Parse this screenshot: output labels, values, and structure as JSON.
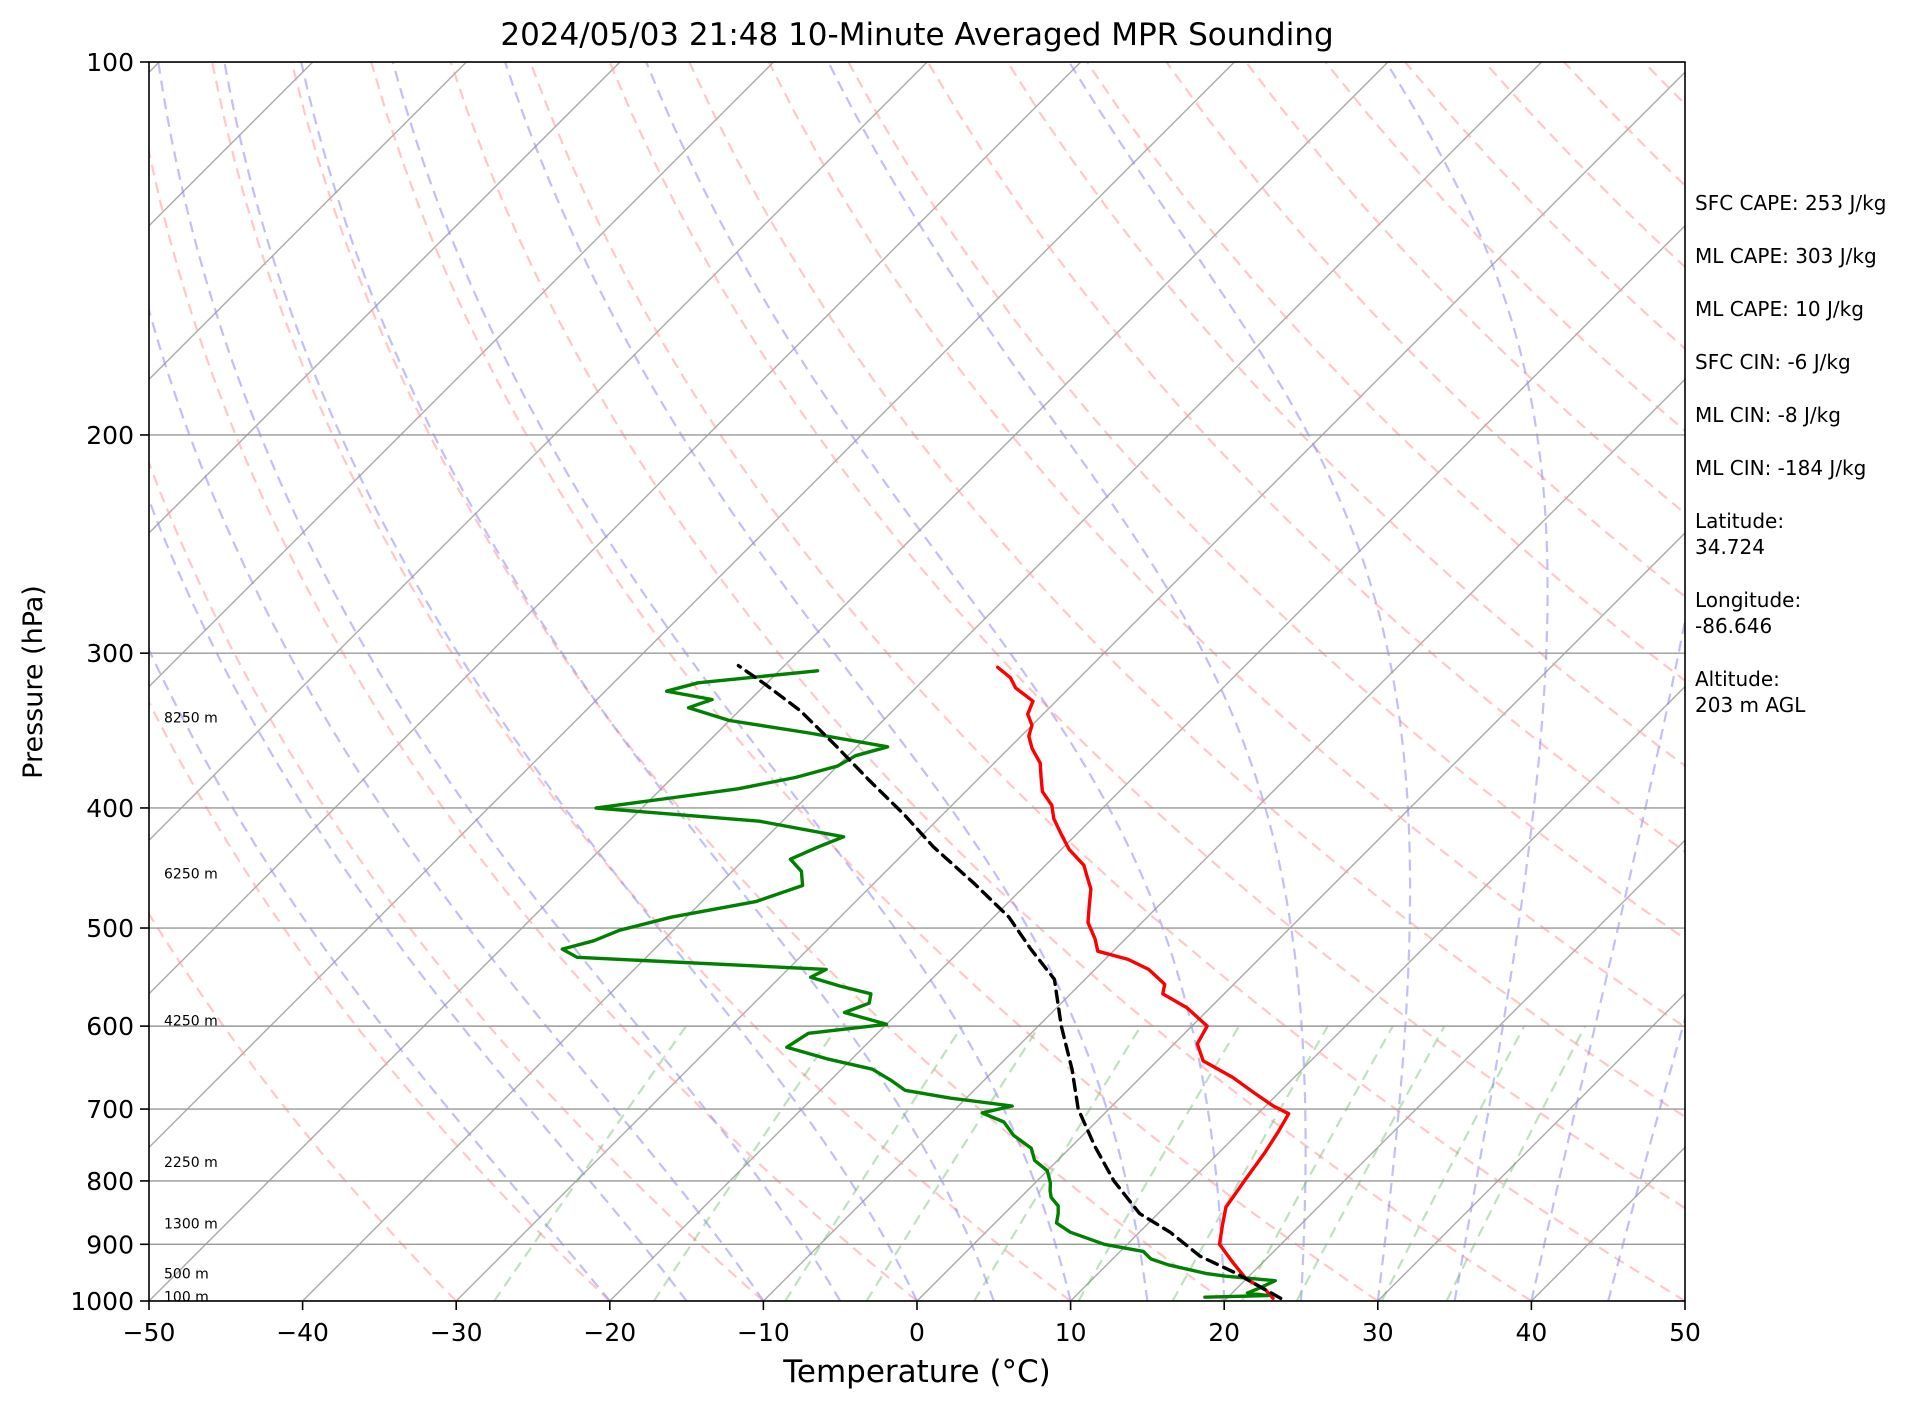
{
  "chart_data": {
    "type": "line",
    "chart_kind": "skew-T log-p",
    "title": "2024/05/03 21:48 10-Minute Averaged MPR Sounding",
    "xlabel": "Temperature (°C)",
    "ylabel": "Pressure (hPa)",
    "xlim": [
      -50,
      50
    ],
    "ylim": [
      1000,
      100
    ],
    "y_scale": "log",
    "x_ticks": [
      -50,
      -40,
      -30,
      -20,
      -10,
      0,
      10,
      20,
      30,
      40,
      50
    ],
    "x_tick_labels": [
      "−50",
      "−40",
      "−30",
      "−20",
      "−10",
      "0",
      "10",
      "20",
      "30",
      "40",
      "50"
    ],
    "y_ticks": [
      1000,
      900,
      800,
      700,
      600,
      500,
      400,
      300,
      200,
      100
    ],
    "y_tick_labels": [
      "1000",
      "900",
      "800",
      "700",
      "600",
      "500",
      "400",
      "300",
      "200",
      "100"
    ],
    "grid": true,
    "height_labels": [
      {
        "p": 992,
        "text": "100 m"
      },
      {
        "p": 950,
        "text": "500 m"
      },
      {
        "p": 866,
        "text": "1300 m"
      },
      {
        "p": 772,
        "text": "2250 m"
      },
      {
        "p": 594,
        "text": "4250 m"
      },
      {
        "p": 452,
        "text": "6250 m"
      },
      {
        "p": 338,
        "text": "8250 m"
      }
    ],
    "series": [
      {
        "color": "#ff0000",
        "points": [
          [
            23.0,
            995
          ],
          [
            22.0,
            980
          ],
          [
            20.0,
            960
          ],
          [
            18.0,
            930
          ],
          [
            16.0,
            900
          ],
          [
            15.0,
            870
          ],
          [
            14.0,
            840
          ],
          [
            13.5,
            800
          ],
          [
            13.0,
            760
          ],
          [
            12.5,
            730
          ],
          [
            12.0,
            706
          ],
          [
            10.5,
            696
          ],
          [
            8.5,
            680
          ],
          [
            6.0,
            660
          ],
          [
            3.0,
            640
          ],
          [
            1.5,
            620
          ],
          [
            1.0,
            600
          ],
          [
            -1.5,
            580
          ],
          [
            -4.0,
            565
          ],
          [
            -4.5,
            555
          ],
          [
            -6.5,
            540
          ],
          [
            -8.5,
            530
          ],
          [
            -11.0,
            522
          ],
          [
            -12.0,
            510
          ],
          [
            -13.5,
            495
          ],
          [
            -14.5,
            480
          ],
          [
            -15.5,
            465
          ],
          [
            -16.5,
            455
          ],
          [
            -17.5,
            445
          ],
          [
            -19.5,
            432
          ],
          [
            -21.0,
            420
          ],
          [
            -22.5,
            408
          ],
          [
            -23.5,
            398
          ],
          [
            -25.0,
            388
          ],
          [
            -26.0,
            378
          ],
          [
            -27.0,
            368
          ],
          [
            -28.5,
            358
          ],
          [
            -29.5,
            350
          ],
          [
            -30.0,
            343
          ],
          [
            -31.0,
            336
          ],
          [
            -31.5,
            328
          ],
          [
            -33.5,
            320
          ],
          [
            -34.5,
            314
          ],
          [
            -36.0,
            308
          ]
        ]
      },
      {
        "color": "#008000",
        "points": [
          [
            18.5,
            993
          ],
          [
            22.5,
            990
          ],
          [
            21.0,
            985
          ],
          [
            21.5,
            975
          ],
          [
            22.0,
            963
          ],
          [
            18.5,
            955
          ],
          [
            17.0,
            950
          ],
          [
            14.0,
            935
          ],
          [
            12.5,
            925
          ],
          [
            11.5,
            912
          ],
          [
            8.5,
            900
          ],
          [
            5.5,
            880
          ],
          [
            4.0,
            865
          ],
          [
            3.5,
            850
          ],
          [
            3.0,
            838
          ],
          [
            2.0,
            825
          ],
          [
            1.5,
            815
          ],
          [
            1.0,
            803
          ],
          [
            0.0,
            785
          ],
          [
            -1.5,
            770
          ],
          [
            -2.5,
            753
          ],
          [
            -4.5,
            735
          ],
          [
            -6.0,
            717
          ],
          [
            -8.0,
            705
          ],
          [
            -6.5,
            696
          ],
          [
            -11.0,
            686
          ],
          [
            -14.5,
            676
          ],
          [
            -16.0,
            664
          ],
          [
            -18.0,
            650
          ],
          [
            -21.5,
            638
          ],
          [
            -25.0,
            624
          ],
          [
            -24.5,
            608
          ],
          [
            -20.0,
            598
          ],
          [
            -23.5,
            585
          ],
          [
            -22.5,
            575
          ],
          [
            -23.0,
            565
          ],
          [
            -25.5,
            557
          ],
          [
            -28.0,
            548
          ],
          [
            -27.5,
            540
          ],
          [
            -44.5,
            528
          ],
          [
            -46.0,
            520
          ],
          [
            -44.5,
            512
          ],
          [
            -43.5,
            502
          ],
          [
            -41.0,
            490
          ],
          [
            -36.5,
            476
          ],
          [
            -34.5,
            462
          ],
          [
            -35.5,
            450
          ],
          [
            -37.0,
            440
          ],
          [
            -36.0,
            430
          ],
          [
            -35.0,
            422
          ],
          [
            -41.5,
            410
          ],
          [
            -53.0,
            400
          ],
          [
            -49.0,
            393
          ],
          [
            -45.0,
            386
          ],
          [
            -42.0,
            378
          ],
          [
            -40.0,
            370
          ],
          [
            -39.5,
            363
          ],
          [
            -38.0,
            357
          ],
          [
            -44.0,
            348
          ],
          [
            -50.0,
            340
          ],
          [
            -53.5,
            332
          ],
          [
            -52.5,
            327
          ],
          [
            -56.0,
            322
          ],
          [
            -54.5,
            317
          ],
          [
            -47.5,
            310
          ]
        ]
      },
      {
        "color": "#000000",
        "dashed": true,
        "points": [
          [
            23.5,
            995
          ],
          [
            19.0,
            950
          ],
          [
            15.5,
            920
          ],
          [
            12.0,
            880
          ],
          [
            8.8,
            850
          ],
          [
            5.0,
            800
          ],
          [
            1.5,
            750
          ],
          [
            -2.0,
            700
          ],
          [
            -5.0,
            650
          ],
          [
            -8.5,
            600
          ],
          [
            -12.0,
            550
          ],
          [
            -15.5,
            520
          ],
          [
            -19.0,
            490
          ],
          [
            -23.5,
            460
          ],
          [
            -28.5,
            430
          ],
          [
            -32.5,
            405
          ],
          [
            -37.0,
            380
          ],
          [
            -41.5,
            356
          ],
          [
            -46.0,
            334
          ],
          [
            -50.0,
            318
          ],
          [
            -53.0,
            307
          ]
        ]
      }
    ],
    "reference_lines": [
      "isotherms (skewed)",
      "dry adiabats",
      "moist adiabats",
      "mixing ratio lines"
    ],
    "stats": [
      "SFC CAPE: 253 J/kg",
      "ML CAPE: 303 J/kg",
      "ML CAPE: 10 J/kg",
      "SFC CIN: -6 J/kg",
      "ML CIN: -8 J/kg",
      "ML CIN: -184 J/kg",
      "Latitude:",
      "34.724",
      "Longitude:",
      "-86.646",
      "Altitude:",
      "203 m AGL"
    ]
  }
}
